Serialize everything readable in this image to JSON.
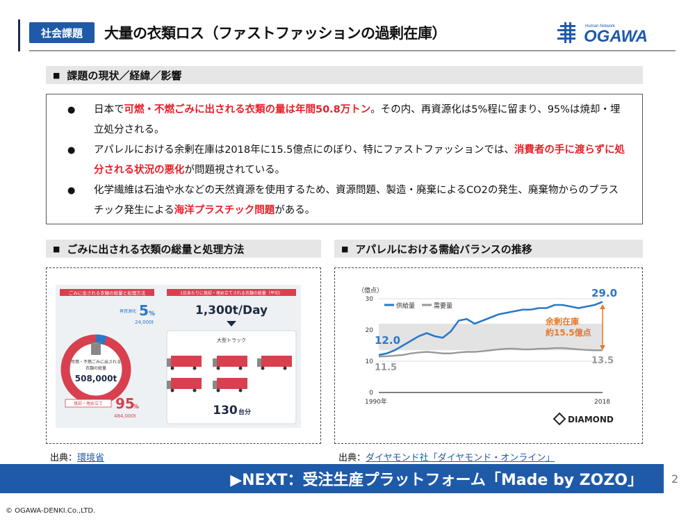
{
  "header": {
    "tag": "社会課題",
    "title": "大量の衣類ロス（ファストファッションの過剰在庫）",
    "logo_small": "Human Network",
    "logo_text": "OGAWA"
  },
  "section1": {
    "heading": "課題の現状／経緯／影響",
    "bullets": [
      {
        "pre": "日本で",
        "red": "可燃・不燃ごみに出される衣類の量は年間50.8万トン",
        "post": "。その内、再資源化は5%程に留まり、95%は焼却・埋立処分される。"
      },
      {
        "pre": "アパレルにおける余剰在庫は2018年に15.5億点にのぼり、特にファストファッションでは、",
        "red": "消費者の手に渡らずに処分される状況の悪化",
        "post": "が問題視されている。"
      },
      {
        "pre": "化学繊維は石油や水などの天然資源を使用するため、資源問題、製造・廃棄によるCO2の発生、廃棄物からのプラスチック発生による",
        "red": "海洋プラスチック問題",
        "post": "がある。"
      }
    ]
  },
  "section2": {
    "heading": "ごみに出される衣類の総量と処理方法",
    "source_label": "出典：",
    "source_link": "環境省",
    "infographic": {
      "left_title": "ごみに出される衣類の総量と処理方法",
      "recycle_label": "再資源化",
      "recycle_pct": "5",
      "recycle_pct_unit": "%",
      "recycle_amount": "24,000t",
      "center_label_1": "可燃・不燃ごみに出される",
      "center_label_2": "衣類の総量",
      "center_amount": "508,000t",
      "burn_label": "焼却・埋め立て",
      "burn_pct": "95",
      "burn_pct_unit": "%",
      "burn_amount": "484,000t",
      "right_title": "1日あたりに焼却・埋め立てされる衣類の総量（平均）",
      "per_day": "1,300t/Day",
      "truck_label": "大型トラック",
      "truck_count": "130",
      "truck_unit": "台分",
      "colors": {
        "red": "#d8404f",
        "blue": "#2a78c8",
        "gray": "#cfd6de"
      }
    }
  },
  "section3": {
    "heading": "アパレルにおける需給バランスの推移",
    "source_label": "出典：",
    "source_link": "ダイヤモンド社「ダイヤモンド・オンライン」",
    "brand": "DIAMOND"
  },
  "chart_data": {
    "type": "line",
    "ylabel": "（億点）",
    "ylim": [
      0,
      30
    ],
    "yticks": [
      0,
      10,
      20,
      30
    ],
    "x_tick_labels": [
      "1990年",
      "2018"
    ],
    "series": [
      {
        "name": "供給量",
        "color": "#2a78c8",
        "values": [
          12.0,
          12.5,
          13.5,
          15.0,
          16.5,
          18.0,
          19.0,
          18.0,
          17.5,
          19.5,
          23.0,
          23.5,
          22.0,
          23.0,
          24.0,
          25.0,
          25.5,
          26.0,
          26.5,
          26.5,
          27.0,
          27.0,
          28.0,
          28.0,
          27.5,
          27.0,
          27.5,
          28.0,
          29.0
        ]
      },
      {
        "name": "需要量",
        "color": "#999999",
        "values": [
          11.5,
          11.6,
          11.8,
          12.0,
          12.5,
          12.8,
          13.0,
          12.8,
          12.5,
          12.5,
          12.8,
          13.0,
          13.0,
          13.2,
          13.5,
          13.8,
          14.0,
          14.0,
          13.8,
          13.8,
          14.0,
          14.0,
          14.2,
          14.2,
          14.0,
          13.8,
          13.6,
          13.5,
          13.5
        ]
      }
    ],
    "annotations": {
      "start_supply": "12.0",
      "start_demand": "11.5",
      "end_supply": "29.0",
      "end_demand": "13.5",
      "surplus_1": "余剰在庫",
      "surplus_2": "約15.5億点"
    },
    "band": [
      13.5,
      22
    ],
    "legend": "top-left"
  },
  "footer": {
    "next": "▶NEXT：受注生産プラットフォーム「Made by ZOZO」",
    "page": "2",
    "copyright": "© OGAWA-DENKI.Co.,LTD."
  }
}
